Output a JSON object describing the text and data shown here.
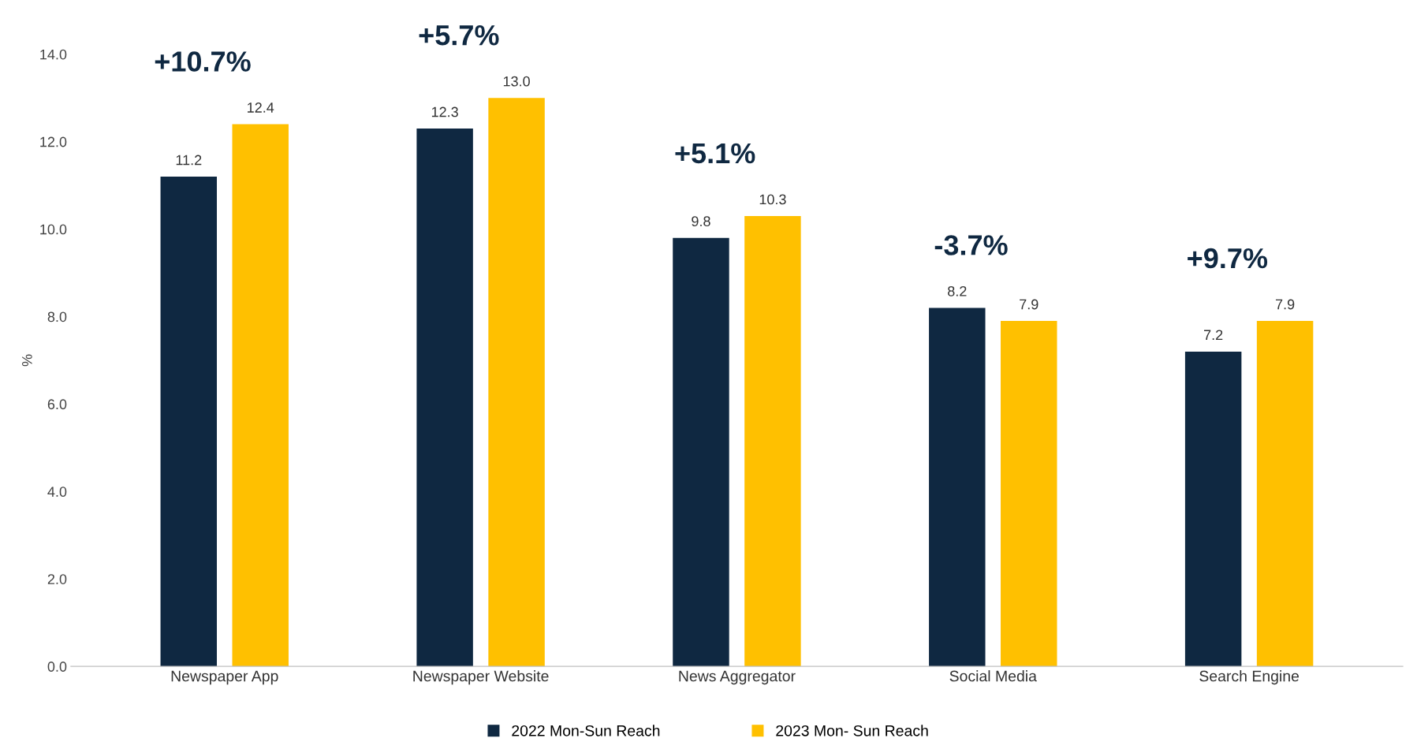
{
  "chart_data": {
    "type": "bar",
    "ylabel": "%",
    "categories": [
      "Newspaper App",
      "Newspaper Website",
      "News Aggregator",
      "Social Media",
      "Search Engine"
    ],
    "series": [
      {
        "name": "2022 Mon-Sun Reach",
        "color": "#0f2841",
        "values": [
          11.2,
          12.3,
          9.8,
          8.2,
          7.2
        ],
        "value_labels": [
          "11.2",
          "12.3",
          "9.8",
          "8.2",
          "7.2"
        ]
      },
      {
        "name": "2023 Mon- Sun Reach",
        "color": "#ffc000",
        "values": [
          12.4,
          13.0,
          10.3,
          7.9,
          7.9
        ],
        "value_labels": [
          "12.4",
          "13.0",
          "10.3",
          "7.9",
          "7.9"
        ]
      }
    ],
    "ylim": [
      0,
      14
    ],
    "yticks": [
      {
        "value": 0,
        "label": "0.0"
      },
      {
        "value": 2,
        "label": "2.0"
      },
      {
        "value": 4,
        "label": "4.0"
      },
      {
        "value": 6,
        "label": "6.0"
      },
      {
        "value": 8,
        "label": "8.0"
      },
      {
        "value": 10,
        "label": "10.0"
      },
      {
        "value": 12,
        "label": "12.0"
      },
      {
        "value": 14,
        "label": "14.0"
      }
    ],
    "annotations": [
      "+10.7%",
      "+5.7%",
      "+5.1%",
      "-3.7%",
      "+9.7%"
    ],
    "grid": false,
    "legend": "bottom"
  }
}
